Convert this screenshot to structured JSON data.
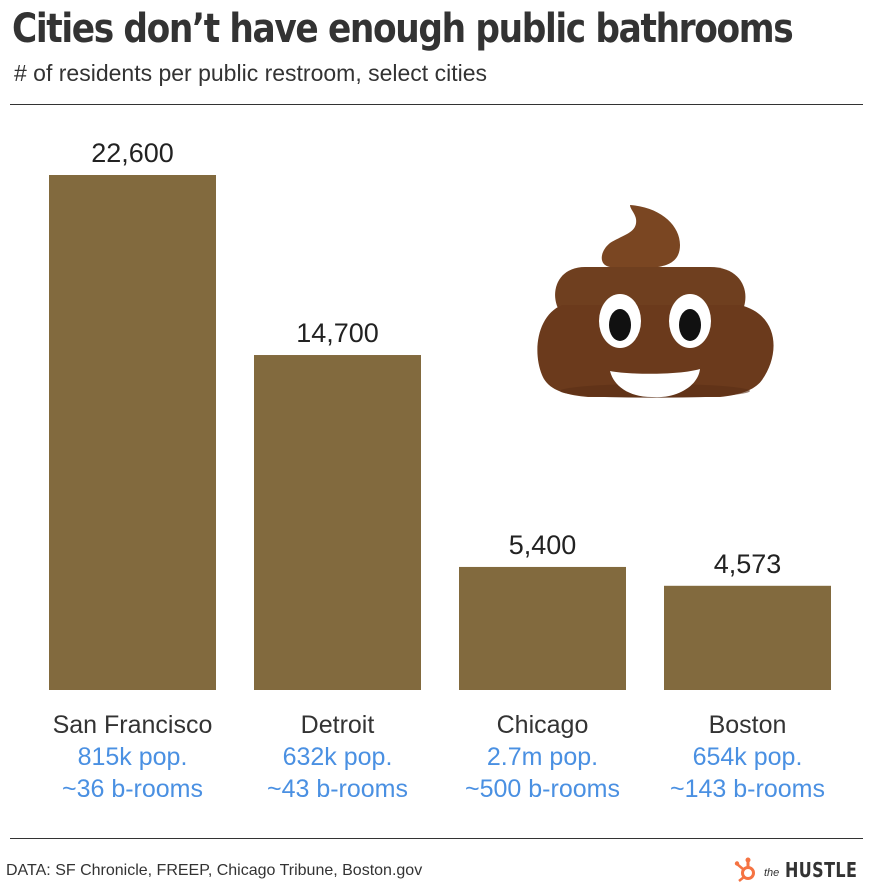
{
  "header": {
    "title": "Cities don’t have enough public bathrooms",
    "subtitle": "# of residents per public restroom, select cities"
  },
  "footer": {
    "source": "DATA: SF Chronicle, FREEP, Chicago Tribune, Boston.gov",
    "brand_the": "the",
    "brand_name": "HUSTLE"
  },
  "colors": {
    "bar": "#826a3e",
    "value_label": "#222222",
    "category_label": "#333333",
    "detail_text": "#4a90e2",
    "hubspot_orange": "#f57342",
    "emoji_brown": "#6b3e1f"
  },
  "decorations": {
    "emoji": "poop-emoji"
  },
  "chart_data": {
    "type": "bar",
    "title": "Cities don’t have enough public bathrooms",
    "subtitle": "# of residents per public restroom, select cities",
    "xlabel": "",
    "ylabel": "",
    "categories": [
      "San Francisco",
      "Detroit",
      "Chicago",
      "Boston"
    ],
    "values": [
      22600,
      14700,
      5400,
      4573
    ],
    "value_labels": [
      "22,600",
      "14,700",
      "5,400",
      "4,573"
    ],
    "details": [
      [
        "815k pop.",
        "~36 b-rooms"
      ],
      [
        "632k pop.",
        "~43 b-rooms"
      ],
      [
        "2.7m pop.",
        "~500 b-rooms"
      ],
      [
        "654k pop.",
        "~143 b-rooms"
      ]
    ],
    "ylim": [
      0,
      22600
    ],
    "grid": false,
    "legend": "none"
  }
}
